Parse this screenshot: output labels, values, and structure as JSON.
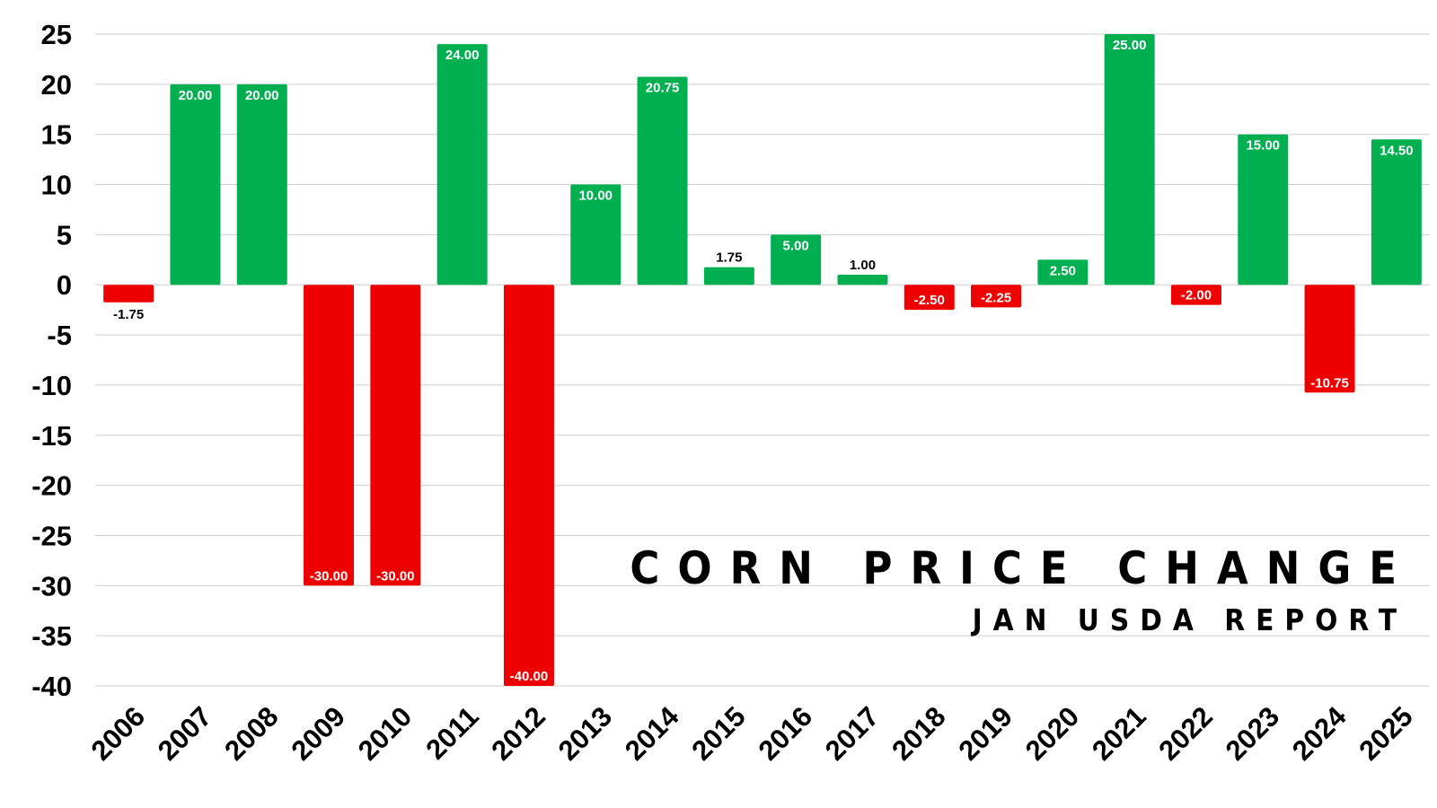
{
  "chart_data": {
    "type": "bar",
    "title": "CORN PRICE CHANGE",
    "subtitle": "JAN USDA REPORT",
    "xlabel": "",
    "ylabel": "",
    "ylim": [
      -40,
      25
    ],
    "yticks": [
      25,
      20,
      15,
      10,
      5,
      0,
      -5,
      -10,
      -15,
      -20,
      -25,
      -30,
      -35,
      -40
    ],
    "grid": true,
    "legend": "none",
    "categories": [
      "2006",
      "2007",
      "2008",
      "2009",
      "2010",
      "2011",
      "2012",
      "2013",
      "2014",
      "2015",
      "2016",
      "2017",
      "2018",
      "2019",
      "2020",
      "2021",
      "2022",
      "2023",
      "2024",
      "2025"
    ],
    "values": [
      -1.75,
      20.0,
      20.0,
      -30.0,
      -30.0,
      24.0,
      -40.0,
      10.0,
      20.75,
      1.75,
      5.0,
      1.0,
      -2.5,
      -2.25,
      2.5,
      25.0,
      -2.0,
      15.0,
      -10.75,
      14.5
    ],
    "data_labels": [
      "-1.75",
      "20.00",
      "20.00",
      "-30.00",
      "-30.00",
      "24.00",
      "-40.00",
      "10.00",
      "20.75",
      "1.75",
      "5.00",
      "1.00",
      "-2.50",
      "-2.25",
      "2.50",
      "25.00",
      "-2.00",
      "15.00",
      "-10.75",
      "14.50"
    ],
    "colors": {
      "positive": "#00b050",
      "negative": "#ee0000",
      "grid": "#cfcfcf",
      "text": "#000000"
    }
  }
}
